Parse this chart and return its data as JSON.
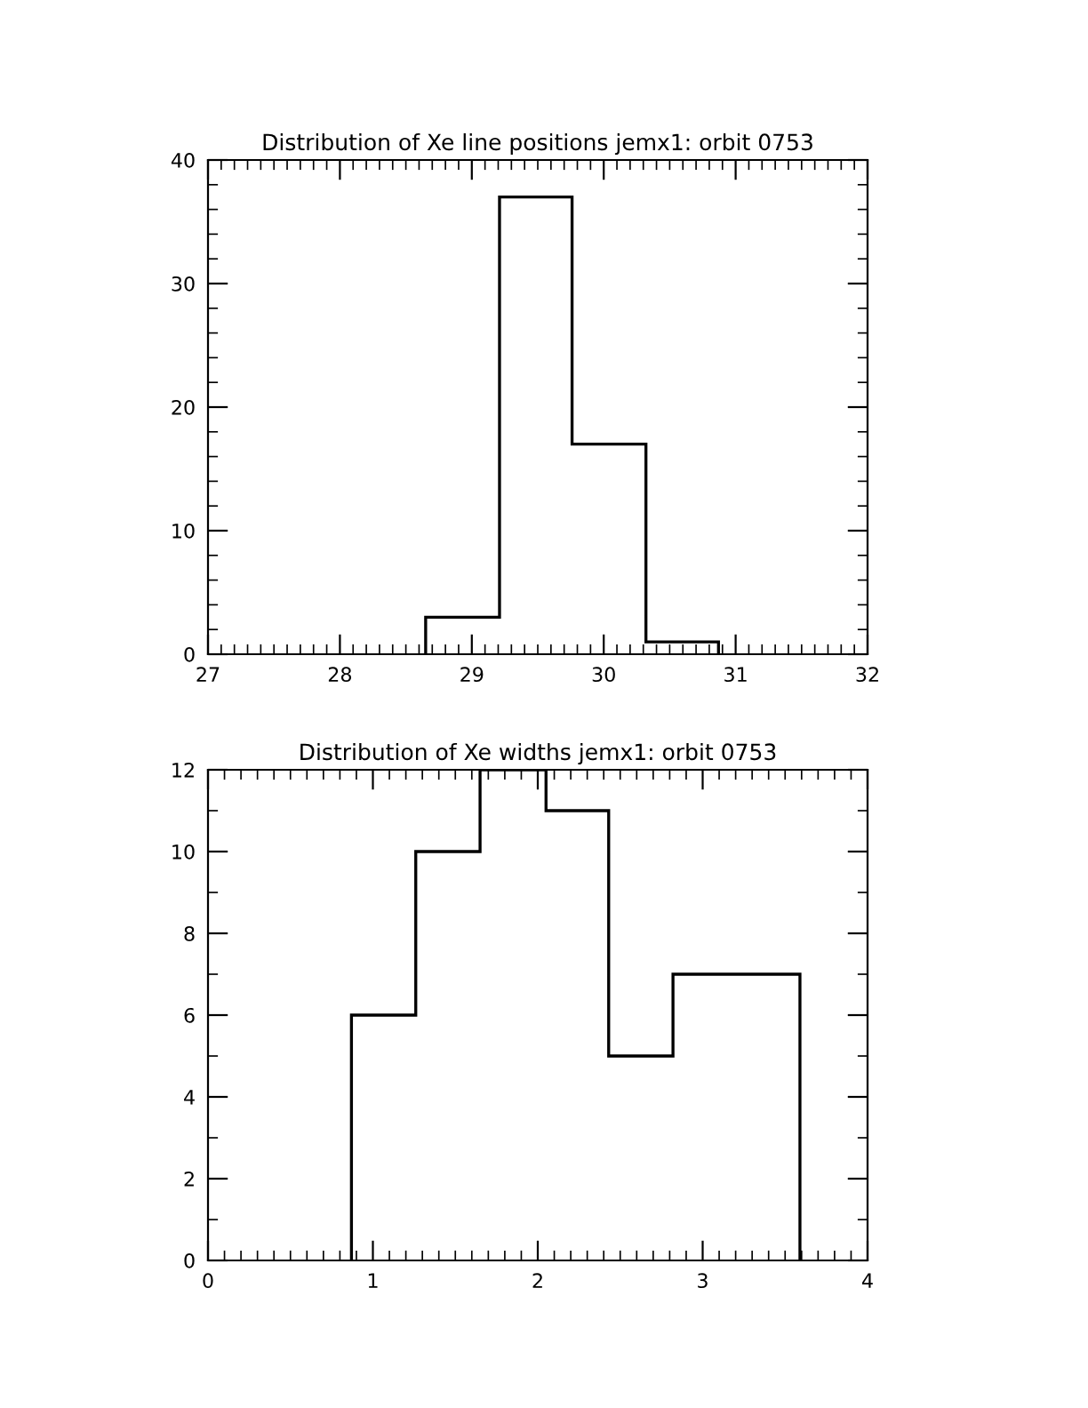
{
  "chart_data": [
    {
      "type": "histogram",
      "title": "Distribution of Xe line positions jemx1: orbit 0753",
      "bins": [
        28.65,
        29.21,
        29.76,
        30.32,
        30.87
      ],
      "values": [
        3,
        37,
        17,
        1
      ],
      "color": "#000000",
      "xlim": [
        27,
        32
      ],
      "xticks": [
        27,
        28,
        29,
        30,
        31,
        32
      ],
      "ylim": [
        0,
        40
      ],
      "yticks": [
        0,
        10,
        20,
        30,
        40
      ],
      "grid": false
    },
    {
      "type": "histogram",
      "title": "Distribution of Xe widths jemx1: orbit 0753",
      "bins": [
        0.87,
        1.26,
        1.65,
        2.05,
        2.43,
        2.82,
        3.21,
        3.59
      ],
      "values": [
        6,
        10,
        12,
        11,
        5,
        7,
        7
      ],
      "color": "#000000",
      "xlim": [
        0,
        4
      ],
      "xticks": [
        0,
        1,
        2,
        3,
        4
      ],
      "ylim": [
        0,
        12
      ],
      "yticks": [
        0,
        2,
        4,
        6,
        8,
        10,
        12
      ],
      "grid": false
    }
  ]
}
